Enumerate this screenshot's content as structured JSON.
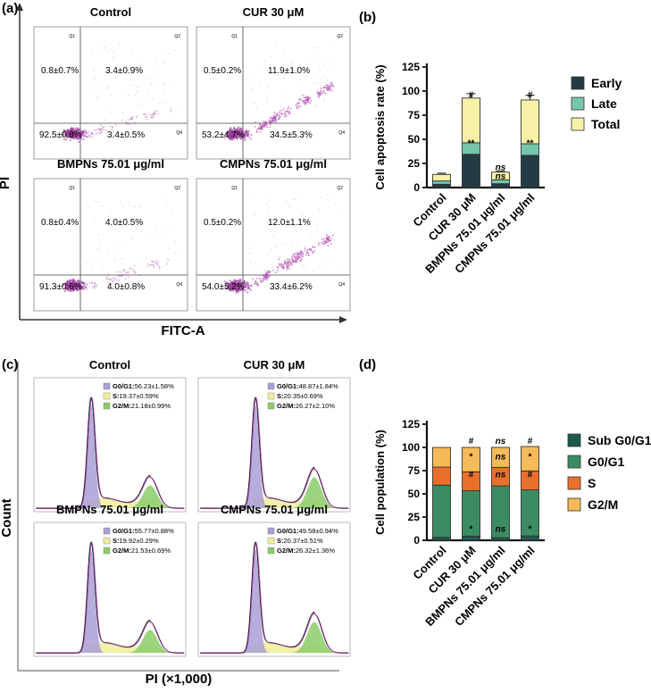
{
  "panel_labels": {
    "a": "(a)",
    "b": "(b)",
    "c": "(c)",
    "d": "(d)"
  },
  "flow_axes": {
    "ylabel": "PI",
    "xlabel": "FITC-A"
  },
  "hist_axes": {
    "ylabel": "Count",
    "xlabel": "PI (×1,000)"
  },
  "flow_plots": [
    {
      "title": "Control",
      "ul": "0.8±0.7%",
      "ur": "3.4±0.9%",
      "ll": "92.5±0.8%",
      "lr": "3.4±0.5%",
      "q2": "Q2",
      "q1": "Q1",
      "q4": "Q4"
    },
    {
      "title": "CUR 30 μM",
      "ul": "0.5±0.2%",
      "ur": "11.9±1.0%",
      "ll": "53.2±4.7%",
      "lr": "34.5±5.3%",
      "q2": "Q2",
      "q1": "Q1",
      "q4": "Q4"
    },
    {
      "title": "BMPNs 75.01 μg/ml",
      "ul": "0.8±0.4%",
      "ur": "4.0±0.5%",
      "ll": "91.3±0.6%",
      "lr": "4.0±0.8%",
      "q2": "Q2",
      "q1": "Q1",
      "q4": "Q4"
    },
    {
      "title": "CMPNs 75.01 μg/ml",
      "ul": "0.5±0.2%",
      "ur": "12.0±1.1%",
      "ll": "54.0±5.2%",
      "lr": "33.4±6.2%",
      "q2": "Q2",
      "q1": "Q1",
      "q4": "Q4"
    }
  ],
  "hist_plots": [
    {
      "title": "Control",
      "g0g1_label": "G0/G1:",
      "g0g1": "56.23±1.58%",
      "s_label": "S:",
      "s": "19.37±0.59%",
      "g2m_label": "G2/M:",
      "g2m": "21.18±0.99%"
    },
    {
      "title": "CUR 30 μM",
      "g0g1_label": "G0/G1:",
      "g0g1": "48.87±1.84%",
      "s_label": "S:",
      "s": "20.35±0.69%",
      "g2m_label": "G2/M:",
      "g2m": "26.27±2.10%"
    },
    {
      "title": "BMPNs 75.01 μg/ml",
      "g0g1_label": "G0/G1:",
      "g0g1": "55.77±0.88%",
      "s_label": "S:",
      "s": "19.92±0.29%",
      "g2m_label": "G2/M:",
      "g2m": "21.53±0.69%"
    },
    {
      "title": "CMPNs 75.01 μg/ml",
      "g0g1_label": "G0/G1:",
      "g0g1": "49.58±0.94%",
      "s_label": "S:",
      "s": "20.37±0.51%",
      "g2m_label": "G2/M:",
      "g2m": "26.32±1.36%"
    }
  ],
  "chart_data": [
    {
      "type": "bar",
      "stacked": true,
      "panel": "b",
      "ylabel": "Cell apoptosis rate (%)",
      "ylim": [
        0,
        125
      ],
      "yticks": [
        0,
        25,
        50,
        75,
        100,
        125
      ],
      "categories": [
        "Control",
        "CUR 30 μM",
        "BMPNs 75.01 μg/ml",
        "CMPNs 75.01 μg/ml"
      ],
      "series": [
        {
          "name": "Early",
          "color": "#243b45",
          "values": [
            3.4,
            34.5,
            4.0,
            33.4
          ]
        },
        {
          "name": "Late",
          "color": "#76c6ad",
          "values": [
            3.4,
            11.9,
            4.0,
            12.0
          ]
        },
        {
          "name": "Total",
          "color": "#f6f1a6",
          "values": [
            6.8,
            46.4,
            8.0,
            45.4
          ]
        }
      ],
      "error": [
        1.2,
        4.5,
        1.0,
        5.0
      ],
      "annotations": [
        {
          "category": 1,
          "level": 93,
          "text": "#",
          "italic": false
        },
        {
          "category": 1,
          "level": 43,
          "text": "**",
          "italic": false
        },
        {
          "category": 2,
          "level": 18,
          "text": "ns",
          "italic": true
        },
        {
          "category": 2,
          "level": 9,
          "text": "ns",
          "italic": true
        },
        {
          "category": 3,
          "level": 93,
          "text": "#",
          "italic": false
        },
        {
          "category": 3,
          "level": 43,
          "text": "**",
          "italic": false
        }
      ]
    },
    {
      "type": "bar",
      "stacked": true,
      "panel": "d",
      "ylabel": "Cell population (%)",
      "ylim": [
        0,
        125
      ],
      "yticks": [
        0,
        25,
        50,
        75,
        100,
        125
      ],
      "categories": [
        "Control",
        "CUR 30 μM",
        "BMPNs 75.01 μg/ml",
        "CMPNs 75.01 μg/ml"
      ],
      "series": [
        {
          "name": "Sub G0/G1",
          "color": "#1d5a4c",
          "values": [
            3.2,
            4.5,
            2.8,
            4.7
          ]
        },
        {
          "name": "G0/G1",
          "color": "#3c8c63",
          "values": [
            56.23,
            48.87,
            55.77,
            49.58
          ]
        },
        {
          "name": "S",
          "color": "#e9702c",
          "values": [
            19.37,
            20.35,
            19.92,
            20.37
          ]
        },
        {
          "name": "G2/M",
          "color": "#f6ba58",
          "values": [
            21.18,
            26.27,
            21.53,
            26.32
          ]
        }
      ],
      "annotations": [
        {
          "category": 1,
          "level": 104,
          "text": "#",
          "italic": false
        },
        {
          "category": 1,
          "level": 87,
          "text": "*",
          "italic": false
        },
        {
          "category": 1,
          "level": 68,
          "text": "#",
          "italic": false
        },
        {
          "category": 1,
          "level": 9,
          "text": "*",
          "italic": false
        },
        {
          "category": 2,
          "level": 104,
          "text": "ns",
          "italic": true
        },
        {
          "category": 2,
          "level": 87,
          "text": "ns",
          "italic": true
        },
        {
          "category": 2,
          "level": 68,
          "text": "ns",
          "italic": true
        },
        {
          "category": 2,
          "level": 9,
          "text": "ns",
          "italic": true
        },
        {
          "category": 3,
          "level": 104,
          "text": "#",
          "italic": false
        },
        {
          "category": 3,
          "level": 87,
          "text": "*",
          "italic": false
        },
        {
          "category": 3,
          "level": 68,
          "text": "#",
          "italic": false
        },
        {
          "category": 3,
          "level": 9,
          "text": "*",
          "italic": false
        }
      ]
    }
  ]
}
